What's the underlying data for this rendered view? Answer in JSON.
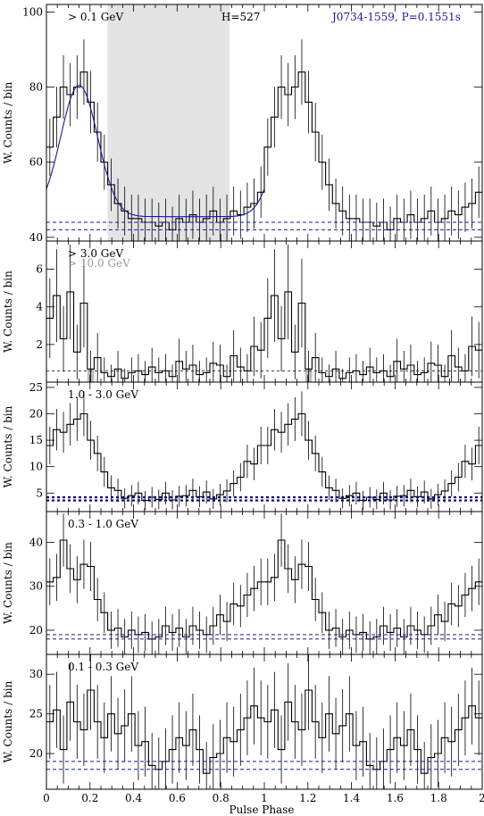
{
  "chart_data": {
    "type": "line",
    "xlabel": "Pulse Phase",
    "xlim": [
      0,
      2
    ],
    "xticks": [
      0,
      0.2,
      0.4,
      0.6,
      0.8,
      1,
      1.2,
      1.4,
      1.6,
      1.8,
      2
    ],
    "xtick_labels": [
      "0",
      "0.2",
      "0.4",
      "0.6",
      "0.8",
      "1",
      "1.2",
      "1.4",
      "1.6",
      "1.8",
      "2"
    ],
    "panels": [
      {
        "label": "> 0.1 GeV",
        "annotation_h": "H=527",
        "annotation_psr": "J0734-1559, P=0.1551s",
        "annotation_psr_color": "#1a1a99",
        "ylabel": "W. Counts / bin",
        "ylim": [
          39,
          102
        ],
        "yticks": [
          40,
          60,
          80,
          100
        ],
        "ytick_labels": [
          "40",
          "60",
          "80",
          "100"
        ],
        "offpulse_phase": [
          0.28,
          0.84
        ],
        "background_levels": [
          42,
          44
        ],
        "fit_color": "#1a1a99",
        "fit": {
          "base": 45.5,
          "peak_phase": 0.15,
          "peak_value": 80.5,
          "phase_range": [
            0.0,
            1.0
          ]
        },
        "profile": [
          64,
          72,
          80,
          78,
          80,
          84,
          76,
          68,
          60,
          54,
          49,
          47,
          45,
          45,
          44,
          44,
          43,
          44,
          42,
          45,
          44,
          46,
          44,
          45,
          47,
          44,
          45,
          47,
          46,
          48,
          49,
          52
        ]
      },
      {
        "label": "> 3.0 GeV",
        "label2": "> 10.0 GeV",
        "label2_color": "#999999",
        "ylabel": "W. Counts / bin",
        "ylim": [
          0,
          7.5
        ],
        "yticks": [
          2,
          4,
          6
        ],
        "ytick_labels": [
          "2",
          "4",
          "6"
        ],
        "background_levels": [
          0.6
        ],
        "profile": [
          3.4,
          4.6,
          2.3,
          4.8,
          1.6,
          4.2,
          0.7,
          1.3,
          0.5,
          0.3,
          0.7,
          0.2,
          0.5,
          0.6,
          0.4,
          0.8,
          0.5,
          0.6,
          0.3,
          1.1,
          0.7,
          0.9,
          0.4,
          0.5,
          1.0,
          0.9,
          0.3,
          1.4,
          0.8,
          0.6,
          1.9,
          1.7
        ],
        "high_energy_profile": [
          0,
          0,
          0,
          0,
          0,
          0,
          0.7,
          0,
          0,
          0,
          0,
          0,
          0,
          0,
          0,
          0,
          0,
          0,
          0,
          0,
          0,
          0,
          0,
          0,
          0,
          0,
          0,
          0,
          0,
          0,
          0,
          0
        ]
      },
      {
        "label": "1.0 - 3.0 GeV",
        "ylabel": "W. Counts / bin",
        "ylim": [
          1.5,
          26
        ],
        "yticks": [
          5,
          10,
          15,
          20,
          25
        ],
        "ytick_labels": [
          "5",
          "10",
          "15",
          "20",
          "25"
        ],
        "background_levels": [
          3.6,
          4.2
        ],
        "profile": [
          14,
          17,
          16.5,
          18,
          19,
          20,
          15,
          12.5,
          9,
          6,
          5.5,
          4,
          4.5,
          5,
          3.6,
          4.2,
          3.8,
          5,
          3.7,
          4.4,
          4.5,
          5.5,
          4.3,
          5.2,
          3.9,
          4.7,
          5.4,
          6.8,
          8,
          11,
          10.5,
          14
        ]
      },
      {
        "label": "0.3 - 1.0 GeV",
        "ylabel": "W. Counts / bin",
        "ylim": [
          14.5,
          47
        ],
        "yticks": [
          20,
          30,
          40
        ],
        "ytick_labels": [
          "20",
          "30",
          "40"
        ],
        "background_levels": [
          18,
          19
        ],
        "profile": [
          31,
          32,
          40.5,
          34,
          31.5,
          35,
          34.5,
          27,
          24,
          20,
          20.5,
          18.5,
          20,
          19,
          19.5,
          18,
          18.5,
          21,
          19.5,
          20.5,
          18.5,
          21,
          20,
          19,
          21,
          23.5,
          22,
          26,
          25.5,
          28,
          29.5,
          31
        ]
      },
      {
        "label": "0.1 - 0.3 GeV",
        "ylabel": "W. Counts / bin",
        "ylim": [
          15.5,
          32.5
        ],
        "yticks": [
          20,
          25,
          30
        ],
        "ytick_labels": [
          "20",
          "25",
          "30"
        ],
        "background_levels": [
          18,
          19
        ],
        "profile": [
          24,
          25.5,
          20.5,
          26.5,
          24,
          23,
          28,
          24,
          22,
          25,
          22.5,
          23.5,
          25,
          21,
          21.5,
          18.5,
          18,
          19,
          20.5,
          22,
          21,
          23,
          20.5,
          17.5,
          19.5,
          20,
          22,
          21.5,
          23,
          24.5,
          26,
          24.5
        ]
      }
    ]
  }
}
